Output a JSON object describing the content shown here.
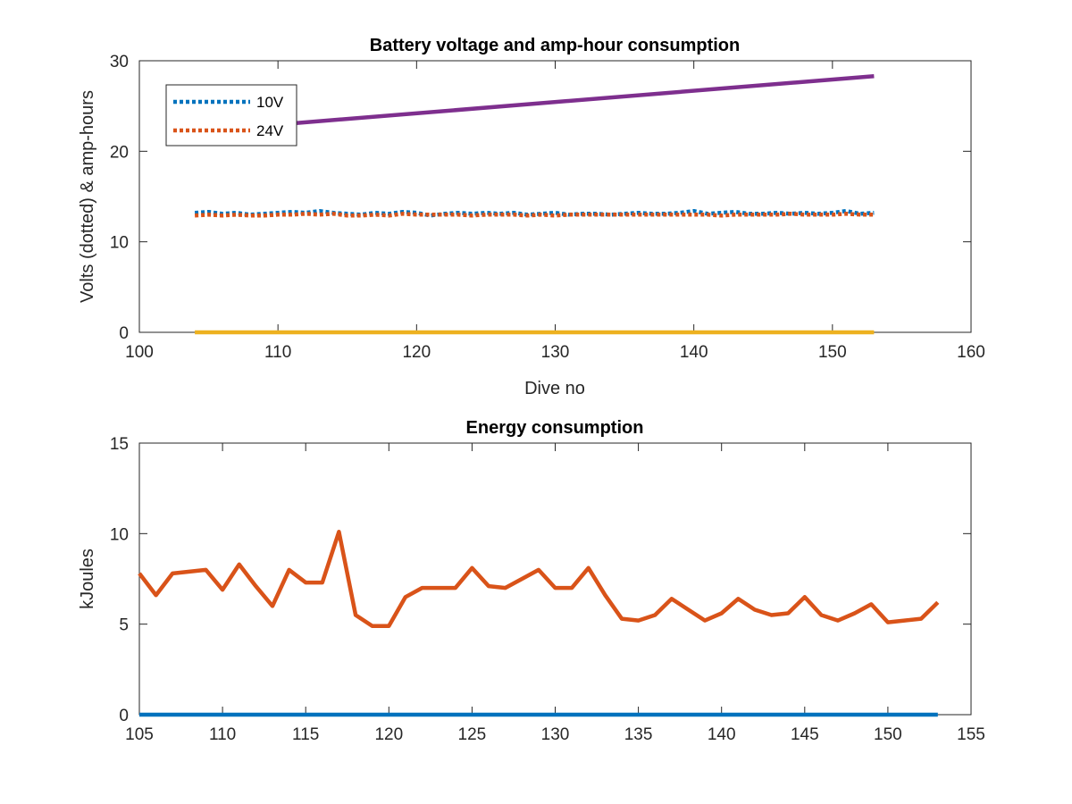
{
  "chart_data": [
    {
      "type": "line",
      "title": "Battery voltage and amp-hour consumption",
      "xlabel": "Dive no",
      "ylabel": "Volts (dotted) & amp-hours",
      "xlim": [
        100,
        160
      ],
      "ylim": [
        0,
        30
      ],
      "xticks": [
        100,
        110,
        120,
        130,
        140,
        150,
        160
      ],
      "yticks": [
        0,
        10,
        20,
        30
      ],
      "grid": false,
      "legend_position": "top-left",
      "series": [
        {
          "name": "10V",
          "style": "dotted",
          "color": "#0072BD",
          "x": [
            104,
            105,
            106,
            107,
            108,
            109,
            110,
            111,
            112,
            113,
            114,
            115,
            116,
            117,
            118,
            119,
            120,
            121,
            122,
            123,
            124,
            125,
            126,
            127,
            128,
            129,
            130,
            131,
            132,
            133,
            134,
            135,
            136,
            137,
            138,
            139,
            140,
            141,
            142,
            143,
            144,
            145,
            146,
            147,
            148,
            149,
            150,
            151,
            152,
            153
          ],
          "y": [
            13.2,
            13.3,
            13.1,
            13.2,
            13.0,
            13.1,
            13.2,
            13.3,
            13.2,
            13.4,
            13.2,
            13.1,
            13.0,
            13.2,
            13.1,
            13.3,
            13.2,
            12.9,
            13.1,
            13.2,
            13.1,
            13.2,
            13.1,
            13.2,
            13.0,
            13.1,
            13.2,
            13.0,
            13.1,
            13.1,
            13.0,
            13.1,
            13.2,
            13.1,
            13.1,
            13.2,
            13.4,
            13.1,
            13.2,
            13.3,
            13.1,
            13.1,
            13.2,
            13.1,
            13.2,
            13.1,
            13.2,
            13.4,
            13.1,
            13.2
          ]
        },
        {
          "name": "24V",
          "style": "dotted",
          "color": "#D95319",
          "x": [
            104,
            105,
            106,
            107,
            108,
            109,
            110,
            111,
            112,
            113,
            114,
            115,
            116,
            117,
            118,
            119,
            120,
            121,
            122,
            123,
            124,
            125,
            126,
            127,
            128,
            129,
            130,
            131,
            132,
            133,
            134,
            135,
            136,
            137,
            138,
            139,
            140,
            141,
            142,
            143,
            144,
            145,
            146,
            147,
            148,
            149,
            150,
            151,
            152,
            153
          ],
          "y": [
            12.9,
            13.0,
            12.9,
            13.0,
            12.9,
            12.9,
            13.0,
            13.0,
            13.1,
            13.0,
            13.1,
            12.9,
            12.9,
            13.0,
            12.9,
            13.1,
            13.0,
            13.0,
            13.0,
            13.0,
            12.9,
            13.0,
            13.0,
            13.0,
            12.9,
            13.0,
            12.9,
            13.0,
            13.0,
            13.0,
            13.0,
            13.0,
            13.0,
            13.0,
            13.0,
            13.0,
            13.0,
            13.0,
            12.9,
            13.0,
            13.0,
            13.0,
            13.0,
            13.1,
            13.0,
            13.0,
            13.0,
            13.1,
            13.0,
            13.0
          ]
        },
        {
          "style": "solid",
          "color": "#EDB120",
          "x": [
            104,
            153
          ],
          "y": [
            0,
            0
          ]
        },
        {
          "style": "solid",
          "color": "#7E2F8E",
          "x": [
            104,
            153
          ],
          "y": [
            22.2,
            28.3
          ]
        }
      ]
    },
    {
      "type": "line",
      "title": "Energy consumption",
      "xlabel": "",
      "ylabel": "kJoules",
      "xlim": [
        105,
        155
      ],
      "ylim": [
        0,
        15
      ],
      "xticks": [
        105,
        110,
        115,
        120,
        125,
        130,
        135,
        140,
        145,
        150,
        155
      ],
      "yticks": [
        0,
        5,
        10,
        15
      ],
      "grid": false,
      "series": [
        {
          "style": "solid",
          "color": "#D95319",
          "x": [
            105,
            106,
            107,
            108,
            109,
            110,
            111,
            112,
            113,
            114,
            115,
            116,
            117,
            118,
            119,
            120,
            121,
            122,
            123,
            124,
            125,
            126,
            127,
            128,
            129,
            130,
            131,
            132,
            133,
            134,
            135,
            136,
            137,
            138,
            139,
            140,
            141,
            142,
            143,
            144,
            145,
            146,
            147,
            148,
            149,
            150,
            151,
            152,
            153
          ],
          "y": [
            7.8,
            6.6,
            7.8,
            7.9,
            8.0,
            6.9,
            8.3,
            7.1,
            6.0,
            8.0,
            7.3,
            7.3,
            10.1,
            5.5,
            4.9,
            4.9,
            6.5,
            7.0,
            7.0,
            7.0,
            8.1,
            7.1,
            7.0,
            7.5,
            8.0,
            7.0,
            7.0,
            8.1,
            6.6,
            5.3,
            5.2,
            5.5,
            6.4,
            5.8,
            5.2,
            5.6,
            6.4,
            5.8,
            5.5,
            5.6,
            6.5,
            5.5,
            5.2,
            5.6,
            6.1,
            5.1,
            5.2,
            5.3,
            6.2
          ]
        },
        {
          "style": "solid",
          "color": "#0072BD",
          "x": [
            105,
            153
          ],
          "y": [
            0,
            0
          ]
        }
      ]
    }
  ]
}
